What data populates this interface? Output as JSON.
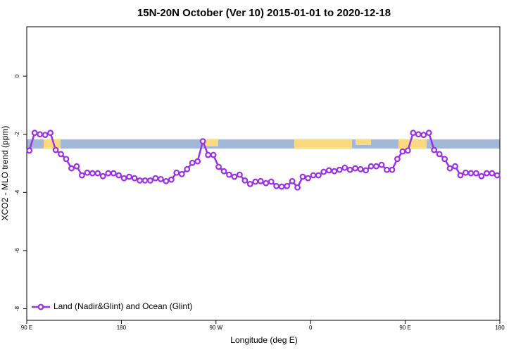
{
  "chart_data": {
    "type": "line",
    "title": "15N-20N October (Ver 10)   2015-01-01 to 2020-12-18",
    "xlabel": "Longitude (deg E)",
    "ylabel": "XCO2 - MLO trend (ppm)",
    "x": [
      92.5,
      97.5,
      102.5,
      107.5,
      112.5,
      117.5,
      122.5,
      127.5,
      132.5,
      137.5,
      142.5,
      147.5,
      152.5,
      157.5,
      162.5,
      167.5,
      172.5,
      177.5,
      182.5,
      187.5,
      192.5,
      197.5,
      202.5,
      207.5,
      212.5,
      217.5,
      222.5,
      227.5,
      232.5,
      237.5,
      242.5,
      247.5,
      252.5,
      257.5,
      262.5,
      267.5,
      272.5,
      277.5,
      282.5,
      287.5,
      292.5,
      297.5,
      302.5,
      307.5,
      312.5,
      317.5,
      322.5,
      327.5,
      332.5,
      337.5,
      342.5,
      347.5,
      352.5,
      357.5,
      362.5,
      367.5,
      372.5,
      377.5,
      382.5,
      387.5,
      392.5,
      397.5,
      402.5,
      407.5,
      412.5,
      417.5,
      422.5,
      427.5,
      432.5,
      437.5,
      442.5,
      447.5,
      452.5,
      457.5,
      462.5,
      467.5,
      472.5,
      477.5,
      482.5,
      487.5,
      492.5,
      497.5,
      502.5,
      507.5,
      512.5,
      517.5,
      522.5,
      527.5,
      532.5,
      537.5
    ],
    "series": [
      {
        "name": "Land (Nadir&Glint) and Ocean (Glint)",
        "color": "#9b30e8",
        "values": [
          -2.56,
          -1.95,
          -2.0,
          -2.02,
          -1.95,
          -2.54,
          -2.68,
          -2.85,
          -3.17,
          -3.1,
          -3.41,
          -3.32,
          -3.34,
          -3.34,
          -3.44,
          -3.34,
          -3.34,
          -3.41,
          -3.51,
          -3.46,
          -3.51,
          -3.59,
          -3.59,
          -3.59,
          -3.51,
          -3.54,
          -3.61,
          -3.56,
          -3.32,
          -3.37,
          -3.2,
          -2.98,
          -2.93,
          -2.24,
          -2.71,
          -2.71,
          -3.12,
          -3.27,
          -3.39,
          -3.46,
          -3.39,
          -3.59,
          -3.71,
          -3.63,
          -3.61,
          -3.68,
          -3.63,
          -3.78,
          -3.8,
          -3.78,
          -3.61,
          -3.83,
          -3.46,
          -3.51,
          -3.41,
          -3.41,
          -3.29,
          -3.24,
          -3.27,
          -3.22,
          -3.15,
          -3.22,
          -3.17,
          -3.2,
          -3.24,
          -3.1,
          -3.1,
          -3.05,
          -3.22,
          -3.22,
          -2.85,
          -2.59,
          -2.56,
          -1.95,
          -2.0,
          -2.02,
          -1.95,
          -2.54,
          -2.68,
          -2.85,
          -3.17,
          -3.1,
          -3.41,
          -3.32,
          -3.34,
          -3.34,
          -3.44,
          -3.34,
          -3.34,
          -3.41
        ]
      }
    ],
    "xlim": [
      90,
      540
    ],
    "xticks": [
      {
        "value": 90,
        "label": "90 E"
      },
      180,
      {
        "value": 270,
        "label": "90 W"
      },
      {
        "value": 360,
        "label": "0"
      },
      {
        "value": 450,
        "label": "90 E"
      },
      {
        "value": 540,
        "label": "180"
      }
    ],
    "ylim": [
      -8.4,
      1.7
    ],
    "yticks": [
      0,
      -2,
      -4,
      -6,
      -8
    ],
    "legend": "bottom-left"
  }
}
